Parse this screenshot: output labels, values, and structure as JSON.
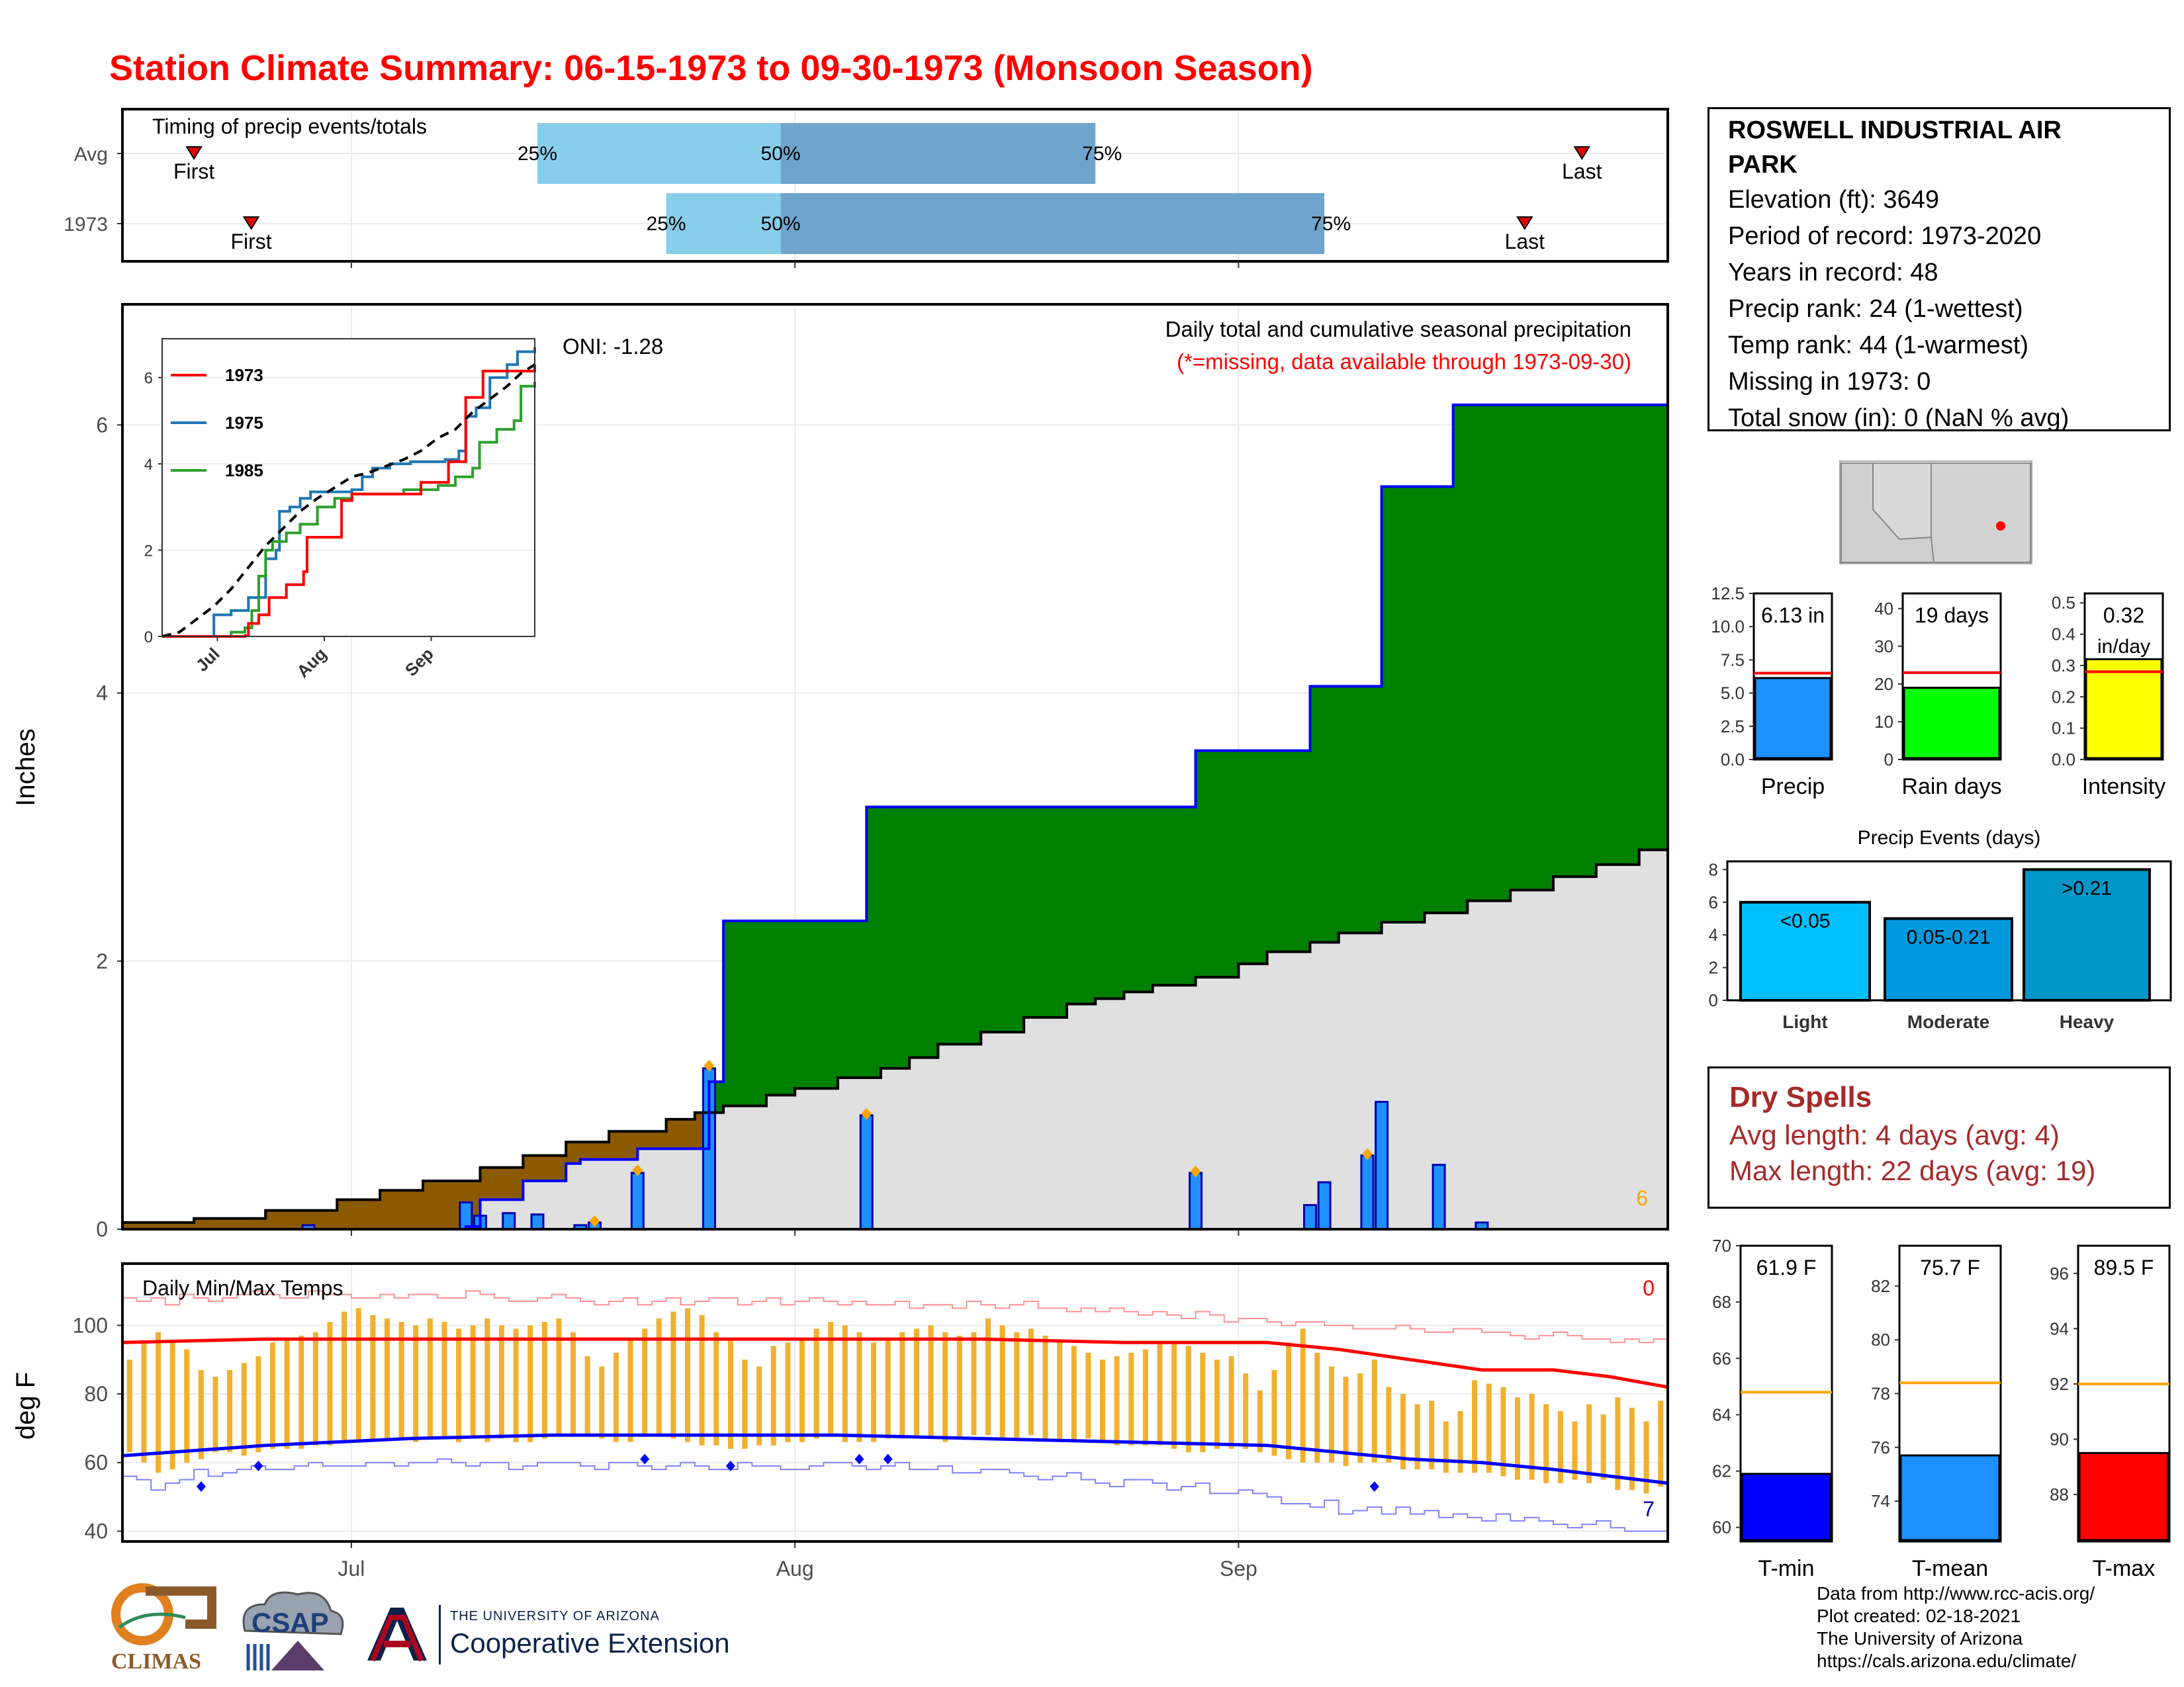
{
  "title": "Station Climate Summary: 06-15-1973 to 09-30-1973 (Monsoon Season)",
  "station": {
    "name": "ROSWELL INDUSTRIAL AIR PARK",
    "lines": [
      "Elevation (ft): 3649",
      "Period of record: 1973-2020",
      "Years in record: 48",
      "Precip rank: 24 (1-wettest)",
      "Temp rank: 44 (1-warmest)",
      "Missing in 1973: 0",
      "Total snow (in): 0 (NaN % avg)"
    ]
  },
  "dry_spells": {
    "title": "Dry Spells",
    "avg": "Avg length: 4 days (avg: 4)",
    "max": "Max length: 22 days (avg: 19)"
  },
  "credits": [
    "Data from http://www.rcc-acis.org/",
    "Plot created: 02-18-2021",
    "The University of Arizona",
    "https://cals.arizona.edu/climate/"
  ],
  "logos": {
    "climas": "CLIMAS",
    "csap": "CSAP",
    "ua_line1": "THE UNIVERSITY OF ARIZONA",
    "ua_line2": "Cooperative Extension"
  },
  "colors": {
    "title": "#ff0000",
    "above_avg": "#8b5a00",
    "below_avg": "#008000",
    "avg_fill": "#e0e0e0",
    "avg_line": "#0000ff",
    "daily_bar": "#1e90ff",
    "temp_bar": "#f0b030",
    "tmax": "#ff0000",
    "tmin": "#0000ff",
    "dry": "#a52a2a"
  },
  "chart_data": [
    {
      "id": "timing",
      "type": "bar",
      "title": "Timing of precip events/totals",
      "rows": [
        {
          "label": "Avg",
          "first": "06-20",
          "q25": "07-14",
          "q50": "07-31",
          "q75": "08-22",
          "last": "09-25"
        },
        {
          "label": "1973",
          "first": "06-24",
          "q25": "07-23",
          "q50": "07-31",
          "q75": "09-07",
          "last": "09-21"
        }
      ],
      "marker_labels": {
        "first": "First",
        "last": "Last",
        "q25": "25%",
        "q50": "50%",
        "q75": "75%"
      }
    },
    {
      "id": "precip",
      "type": "area",
      "title": "Daily total and cumulative seasonal precipitation",
      "subtitle": "(*=missing, data available through 1973-09-30)",
      "oni": "ONI: -1.28",
      "ylabel": "Inches",
      "ylim": [
        0,
        6.9
      ],
      "yticks": [
        0,
        2,
        4,
        6
      ],
      "xticks": [
        {
          "label": "Jul",
          "day": 16
        },
        {
          "label": "Aug",
          "day": 47
        },
        {
          "label": "Sep",
          "day": 78
        }
      ],
      "x_days": 108,
      "corner_count": "6",
      "avg_cumulative": [
        [
          0,
          0.05
        ],
        [
          5,
          0.08
        ],
        [
          10,
          0.14
        ],
        [
          15,
          0.22
        ],
        [
          18,
          0.29
        ],
        [
          21,
          0.36
        ],
        [
          25,
          0.46
        ],
        [
          28,
          0.55
        ],
        [
          31,
          0.65
        ],
        [
          34,
          0.73
        ],
        [
          38,
          0.82
        ],
        [
          40,
          0.87
        ],
        [
          42,
          0.92
        ],
        [
          45,
          1.0
        ],
        [
          47,
          1.05
        ],
        [
          50,
          1.13
        ],
        [
          53,
          1.2
        ],
        [
          55,
          1.28
        ],
        [
          57,
          1.38
        ],
        [
          60,
          1.47
        ],
        [
          63,
          1.58
        ],
        [
          66,
          1.68
        ],
        [
          68,
          1.72
        ],
        [
          70,
          1.77
        ],
        [
          72,
          1.82
        ],
        [
          75,
          1.88
        ],
        [
          78,
          1.98
        ],
        [
          80,
          2.07
        ],
        [
          83,
          2.14
        ],
        [
          85,
          2.21
        ],
        [
          88,
          2.29
        ],
        [
          91,
          2.36
        ],
        [
          94,
          2.45
        ],
        [
          97,
          2.53
        ],
        [
          100,
          2.63
        ],
        [
          103,
          2.72
        ],
        [
          106,
          2.83
        ],
        [
          108,
          2.88
        ]
      ],
      "obs_cumulative": [
        [
          0,
          0
        ],
        [
          13,
          0
        ],
        [
          24,
          0.02
        ],
        [
          25,
          0.22
        ],
        [
          28,
          0.36
        ],
        [
          31,
          0.49
        ],
        [
          32,
          0.52
        ],
        [
          36,
          0.6
        ],
        [
          41,
          1.1
        ],
        [
          42,
          2.3
        ],
        [
          52,
          3.15
        ],
        [
          75,
          3.57
        ],
        [
          83,
          4.05
        ],
        [
          88,
          5.54
        ],
        [
          93,
          6.15
        ],
        [
          108,
          6.15
        ]
      ],
      "daily_bars": [
        [
          13,
          0.03
        ],
        [
          24,
          0.2
        ],
        [
          25,
          0.1
        ],
        [
          27,
          0.12
        ],
        [
          29,
          0.11
        ],
        [
          32,
          0.03
        ],
        [
          33,
          0.05
        ],
        [
          36,
          0.42
        ],
        [
          41,
          1.2
        ],
        [
          52,
          0.85
        ],
        [
          75,
          0.42
        ],
        [
          83,
          0.18
        ],
        [
          84,
          0.35
        ],
        [
          87,
          0.55
        ],
        [
          88,
          0.95
        ],
        [
          92,
          0.48
        ],
        [
          95,
          0.05
        ]
      ],
      "daily_markers": [
        [
          33,
          0.06
        ],
        [
          36,
          0.44
        ],
        [
          41,
          1.22
        ],
        [
          52,
          0.86
        ],
        [
          75,
          0.43
        ],
        [
          87,
          0.56
        ]
      ],
      "inset": {
        "type": "line",
        "series": [
          {
            "name": "1973",
            "color": "#ff0000"
          },
          {
            "name": "1975",
            "color": "#1f77b4"
          },
          {
            "name": "1985",
            "color": "#2ca02c"
          }
        ],
        "yticks": [
          0,
          2,
          4,
          6
        ],
        "xticks": [
          "Jul",
          "Aug",
          "Sep"
        ]
      }
    },
    {
      "id": "temps",
      "type": "bar",
      "title": "Daily Min/Max Temps",
      "ylabel": "deg F",
      "ylim": [
        37,
        118
      ],
      "yticks": [
        40,
        60,
        80,
        100
      ],
      "xticks": [
        {
          "label": "Jul",
          "day": 16
        },
        {
          "label": "Aug",
          "day": 47
        },
        {
          "label": "Sep",
          "day": 78
        }
      ],
      "corner_top": "0",
      "corner_bottom": "7",
      "tmax_avg": [
        [
          0,
          95
        ],
        [
          10,
          96
        ],
        [
          20,
          96
        ],
        [
          30,
          96
        ],
        [
          40,
          96
        ],
        [
          50,
          96
        ],
        [
          60,
          96
        ],
        [
          70,
          95
        ],
        [
          80,
          95
        ],
        [
          85,
          93
        ],
        [
          90,
          90
        ],
        [
          95,
          87
        ],
        [
          100,
          87
        ],
        [
          104,
          85
        ],
        [
          108,
          82
        ]
      ],
      "tmin_avg": [
        [
          0,
          62
        ],
        [
          10,
          65
        ],
        [
          20,
          67
        ],
        [
          30,
          68
        ],
        [
          40,
          68
        ],
        [
          50,
          68
        ],
        [
          60,
          67
        ],
        [
          70,
          66
        ],
        [
          80,
          65
        ],
        [
          85,
          63
        ],
        [
          90,
          61
        ],
        [
          95,
          60
        ],
        [
          100,
          58
        ],
        [
          104,
          56
        ],
        [
          108,
          54
        ]
      ],
      "daily_tmin": [
        63,
        60,
        57,
        58,
        60,
        61,
        63,
        63,
        62,
        63,
        64,
        64,
        64,
        65,
        65,
        66,
        66,
        66,
        67,
        67,
        66,
        67,
        67,
        66,
        67,
        66,
        67,
        66,
        66,
        67,
        68,
        68,
        68,
        67,
        66,
        66,
        68,
        68,
        67,
        66,
        65,
        65,
        64,
        64,
        65,
        65,
        66,
        66,
        67,
        68,
        66,
        66,
        66,
        67,
        67,
        68,
        67,
        66,
        67,
        68,
        68,
        67,
        67,
        68,
        67,
        66,
        66,
        67,
        66,
        65,
        65,
        65,
        65,
        64,
        63,
        63,
        64,
        64,
        64,
        63,
        62,
        61,
        60,
        60,
        60,
        59,
        60,
        60,
        60,
        58,
        58,
        58,
        57,
        57,
        57,
        57,
        56,
        55,
        55,
        54,
        54,
        55,
        54,
        55,
        52,
        52,
        51,
        53
      ],
      "daily_tmax": [
        90,
        95,
        98,
        95,
        93,
        87,
        85,
        87,
        89,
        91,
        95,
        96,
        97,
        98,
        101,
        104,
        105,
        103,
        102,
        101,
        100,
        102,
        101,
        99,
        100,
        102,
        100,
        99,
        100,
        101,
        102,
        98,
        91,
        88,
        92,
        96,
        99,
        102,
        104,
        105,
        103,
        98,
        96,
        90,
        88,
        94,
        95,
        96,
        99,
        101,
        100,
        98,
        95,
        96,
        98,
        99,
        100,
        98,
        97,
        98,
        102,
        100,
        98,
        99,
        97,
        95,
        94,
        92,
        90,
        91,
        92,
        93,
        95,
        95,
        94,
        92,
        90,
        91,
        86,
        81,
        87,
        95,
        99,
        92,
        88,
        85,
        86,
        90,
        82,
        80,
        77,
        78,
        72,
        75,
        84,
        83,
        82,
        79,
        80,
        77,
        75,
        72,
        77,
        74,
        79,
        76,
        72,
        78
      ],
      "record_high": [
        108,
        107,
        108,
        106,
        109,
        108,
        107,
        108,
        109,
        110,
        109,
        108,
        108,
        110,
        109,
        109,
        108,
        108,
        109,
        108,
        109,
        109,
        108,
        108,
        110,
        109,
        108,
        107,
        107,
        108,
        109,
        108,
        107,
        106,
        107,
        108,
        106,
        107,
        108,
        106,
        107,
        108,
        108,
        106,
        107,
        108,
        106,
        107,
        108,
        107,
        106,
        107,
        106,
        106,
        107,
        105,
        106,
        106,
        105,
        107,
        106,
        105,
        106,
        107,
        105,
        105,
        104,
        105,
        104,
        105,
        104,
        103,
        104,
        103,
        102,
        104,
        103,
        101,
        102,
        102,
        101,
        100,
        101,
        101,
        100,
        100,
        99,
        99,
        99,
        100,
        99,
        98,
        98,
        99,
        99,
        98,
        98,
        97,
        96,
        97,
        98,
        97,
        96,
        96,
        95,
        96,
        95,
        96
      ],
      "record_low": [
        56,
        55,
        52,
        54,
        55,
        58,
        56,
        57,
        58,
        59,
        58,
        58,
        59,
        60,
        59,
        59,
        59,
        60,
        60,
        59,
        60,
        60,
        61,
        60,
        59,
        60,
        60,
        58,
        59,
        60,
        60,
        60,
        59,
        58,
        60,
        60,
        59,
        58,
        59,
        60,
        59,
        58,
        58,
        60,
        59,
        59,
        58,
        58,
        59,
        60,
        60,
        59,
        58,
        59,
        60,
        58,
        58,
        59,
        57,
        57,
        58,
        58,
        57,
        56,
        55,
        56,
        57,
        55,
        54,
        53,
        55,
        55,
        54,
        52,
        53,
        54,
        51,
        51,
        52,
        51,
        50,
        48,
        48,
        47,
        49,
        45,
        46,
        47,
        45,
        47,
        45,
        46,
        44,
        45,
        44,
        43,
        45,
        43,
        44,
        43,
        42,
        41,
        42,
        43,
        41,
        40,
        40,
        40
      ],
      "min_markers": [
        [
          5,
          53
        ],
        [
          9,
          59
        ],
        [
          36,
          61
        ],
        [
          42,
          59
        ],
        [
          51,
          61
        ],
        [
          53,
          61
        ],
        [
          87,
          53
        ]
      ]
    },
    {
      "id": "summary_precip",
      "type": "bar",
      "panels": [
        {
          "label": "Precip",
          "value_text": "6.13 in",
          "value": 6.13,
          "avg": 6.5,
          "ylim": [
            0,
            12.5
          ],
          "yticks": [
            0.0,
            2.5,
            5.0,
            7.5,
            10.0,
            12.5
          ],
          "color": "#1e90ff"
        },
        {
          "label": "Rain days",
          "value_text": "19 days",
          "value": 19,
          "avg": 23,
          "ylim": [
            0,
            44
          ],
          "yticks": [
            0,
            10,
            20,
            30,
            40
          ],
          "color": "#00ff00"
        },
        {
          "label": "Intensity",
          "value_text": "0.32",
          "unit": "in/day",
          "value": 0.32,
          "avg": 0.28,
          "ylim": [
            0,
            0.53
          ],
          "yticks": [
            0.0,
            0.1,
            0.2,
            0.3,
            0.4,
            0.5
          ],
          "color": "#ffff00"
        }
      ]
    },
    {
      "id": "precip_events",
      "type": "bar",
      "title": "Precip Events (days)",
      "categories": [
        "Light",
        "Moderate",
        "Heavy"
      ],
      "bar_labels": [
        "<0.05",
        "0.05-0.21",
        ">0.21"
      ],
      "values": [
        6,
        5,
        8
      ],
      "colors": [
        "#00bfff",
        "#0099dd",
        "#0096c7"
      ],
      "ylim": [
        0,
        8.5
      ],
      "yticks": [
        0,
        2,
        4,
        6,
        8
      ]
    },
    {
      "id": "summary_temps",
      "type": "bar",
      "panels": [
        {
          "label": "T-min",
          "value_text": "61.9 F",
          "value": 61.9,
          "avg": 64.8,
          "ylim": [
            59.5,
            70
          ],
          "yticks": [
            60,
            62,
            64,
            66,
            68,
            70
          ],
          "color": "#0000ff"
        },
        {
          "label": "T-mean",
          "value_text": "75.7 F",
          "value": 75.7,
          "avg": 78.4,
          "ylim": [
            72.5,
            83.5
          ],
          "yticks": [
            74,
            76,
            78,
            80,
            82
          ],
          "color": "#1e90ff"
        },
        {
          "label": "T-max",
          "value_text": "89.5 F",
          "value": 89.5,
          "avg": 92.0,
          "ylim": [
            86.3,
            97
          ],
          "yticks": [
            88,
            90,
            92,
            94,
            96
          ],
          "color": "#ff0000"
        }
      ]
    }
  ]
}
